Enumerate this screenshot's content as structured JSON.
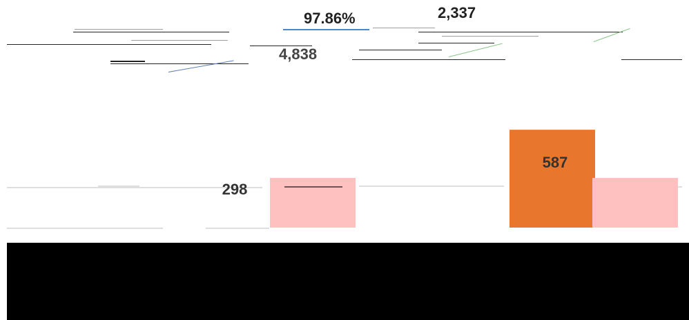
{
  "header": {
    "label_pct": "97.86%",
    "label_count": "2,337",
    "label_total": "4,838"
  },
  "chart_data": {
    "type": "bar",
    "categories": [
      "",
      "",
      "",
      ""
    ],
    "values": [
      298,
      298,
      587,
      298
    ],
    "data_labels": [
      "298",
      "",
      "587",
      ""
    ],
    "colors": {
      "pink": "#ffc0c0",
      "orange": "#e8762d",
      "accent_blue": "#4a86c8"
    },
    "title": "",
    "xlabel": "",
    "ylabel": "",
    "grid": false,
    "legend": "none"
  }
}
